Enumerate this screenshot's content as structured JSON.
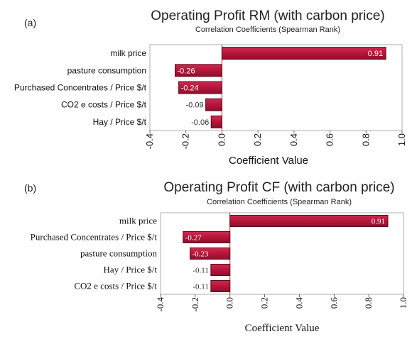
{
  "chart_data": [
    {
      "panel": "(a)",
      "type": "bar",
      "orientation": "horizontal",
      "title": "Operating Profit RM (with carbon price)",
      "subtitle": "Correlation Coefficients (Spearman Rank)",
      "xlabel": "Coefficient Value",
      "xlim": [
        -0.4,
        1.0
      ],
      "xticks": [
        "-0.4",
        "-0.2",
        "0.0",
        "0.2",
        "0.4",
        "0.6",
        "0.8",
        "1.0"
      ],
      "categories": [
        "milk price",
        "pasture consumption",
        "Purchased Concentrates / Price $/t",
        "CO2 e costs / Price $/t",
        "Hay / Price $/t"
      ],
      "values": [
        0.91,
        -0.26,
        -0.24,
        -0.09,
        -0.06
      ],
      "value_labels": [
        "0.91",
        "-0.26",
        "-0.24",
        "-0.09",
        "-0.06"
      ]
    },
    {
      "panel": "(b)",
      "type": "bar",
      "orientation": "horizontal",
      "title": "Operating Profit CF (with carbon price)",
      "subtitle": "Correlation Coefficients (Spearman Rank)",
      "xlabel": "Coefficient Value",
      "xlim": [
        -0.4,
        1.0
      ],
      "xticks": [
        "-0.4",
        "-0.2",
        "0.0",
        "0.2",
        "0.4",
        "0.6",
        "0.8",
        "1.0"
      ],
      "categories": [
        "milk price",
        "Purchased Concentrates / Price $/t",
        "pasture consumption",
        "Hay / Price $/t",
        "CO2 e costs / Price $/t"
      ],
      "values": [
        0.91,
        -0.27,
        -0.23,
        -0.11,
        -0.11
      ],
      "value_labels": [
        "0.91",
        "-0.27",
        "-0.23",
        "-0.11",
        "-0.11"
      ]
    }
  ],
  "colors": {
    "bar_fill": "#b3143a",
    "bar_edge": "#5a0a1c",
    "axis": "#9a9a9a",
    "zero_line": "#cc2233"
  }
}
